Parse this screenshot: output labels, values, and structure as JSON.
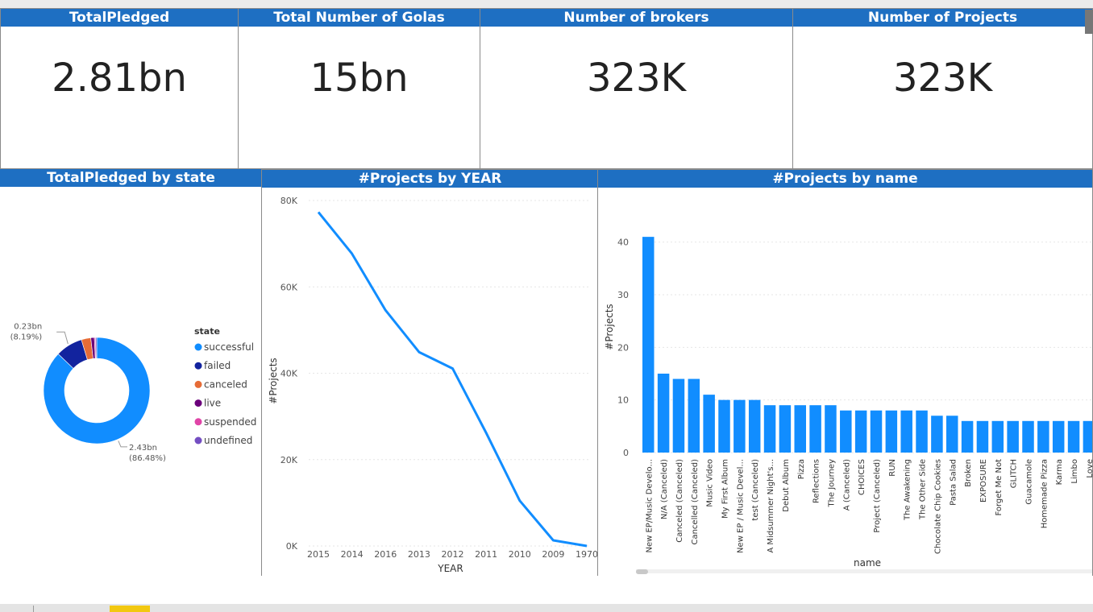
{
  "kpis": [
    {
      "title": "TotalPledged",
      "value": "2.81bn"
    },
    {
      "title": "Total Number of Golas",
      "value": "15bn"
    },
    {
      "title": "Number of brokers",
      "value": "323K"
    },
    {
      "title": "Number of Projects",
      "value": "323K"
    }
  ],
  "chart_data": [
    {
      "type": "pie",
      "title": "TotalPledged by state",
      "legend_title": "state",
      "legend_position": "right",
      "donut": true,
      "slices": [
        {
          "name": "successful",
          "value": 2.43,
          "color": "#118dff"
        },
        {
          "name": "failed",
          "value": 0.23,
          "color": "#12239e"
        },
        {
          "name": "canceled",
          "value": 0.08,
          "color": "#e66c37"
        },
        {
          "name": "live",
          "value": 0.03,
          "color": "#6b007b"
        },
        {
          "name": "suspended",
          "value": 0.01,
          "color": "#e044a7"
        },
        {
          "name": "undefined",
          "value": 0.01,
          "color": "#744ec2"
        }
      ],
      "labels": [
        {
          "value": "0.23bn",
          "percent": "(8.19%)",
          "slice": "failed"
        },
        {
          "value": "2.43bn",
          "percent": "(86.48%)",
          "slice": "successful"
        }
      ]
    },
    {
      "type": "line",
      "title": "#Projects by YEAR",
      "xlabel": "YEAR",
      "ylabel": "#Projects",
      "x": [
        "2015",
        "2014",
        "2016",
        "2013",
        "2012",
        "2011",
        "2010",
        "2009",
        "1970"
      ],
      "values": [
        77300,
        67700,
        54600,
        44900,
        41100,
        26200,
        10500,
        1300,
        0
      ],
      "ylim": [
        0,
        80000
      ],
      "yticks": [
        {
          "v": 0,
          "t": "0K"
        },
        {
          "v": 20000,
          "t": "20K"
        },
        {
          "v": 40000,
          "t": "40K"
        },
        {
          "v": 60000,
          "t": "60K"
        },
        {
          "v": 80000,
          "t": "80K"
        }
      ],
      "color": "#118dff",
      "grid": true
    },
    {
      "type": "bar",
      "title": "#Projects by name",
      "xlabel": "name",
      "ylabel": "#Projects",
      "categories": [
        "New EP/Music Develo...",
        "N/A (Canceled)",
        "Canceled (Canceled)",
        "Cancelled (Canceled)",
        "Music Video",
        "My First Album",
        "New EP / Music Devel...",
        "test (Canceled)",
        "A Midsummer Night's...",
        "Debut Album",
        "Pizza",
        "Reflections",
        "The Journey",
        "A (Canceled)",
        "CHOICES",
        "Project (Canceled)",
        "RUN",
        "The Awakening",
        "The Other Side",
        "Chocolate Chip Cookies",
        "Pasta Salad",
        "Broken",
        "EXPOSURE",
        "Forget Me Not",
        "GLITCH",
        "Guacamole",
        "Homemade Pizza",
        "Karma",
        "Limbo",
        "Love"
      ],
      "values": [
        41,
        15,
        14,
        14,
        11,
        10,
        10,
        10,
        9,
        9,
        9,
        9,
        9,
        8,
        8,
        8,
        8,
        8,
        8,
        7,
        7,
        6,
        6,
        6,
        6,
        6,
        6,
        6,
        6,
        6
      ],
      "ylim": [
        0,
        45
      ],
      "yticks": [
        0,
        10,
        20,
        30,
        40
      ],
      "color": "#118dff",
      "grid": true
    }
  ]
}
